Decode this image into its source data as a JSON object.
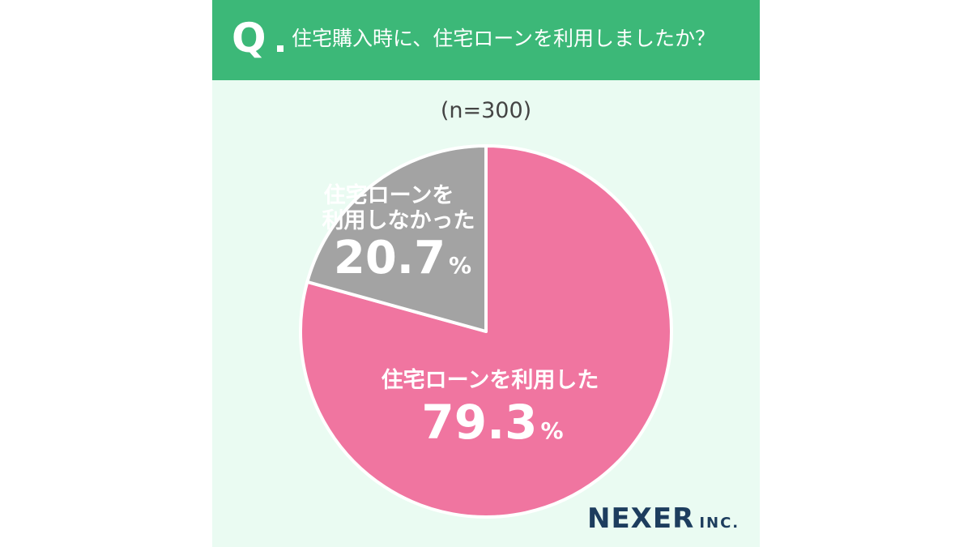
{
  "header": {
    "q_mark": "Q",
    "question": "住宅購入時に、住宅ローンを利用しましたか？"
  },
  "sample": "(n=300)",
  "colors": {
    "header_bg": "#3cb878",
    "panel_bg": "#eafbf2",
    "used": "#f075a0",
    "not_used": "#a3a3a3"
  },
  "chart_data": {
    "type": "pie",
    "title": "住宅購入時に、住宅ローンを利用しましたか？",
    "n": 300,
    "slices": [
      {
        "label": "住宅ローンを利用した",
        "value": 79.3,
        "value_text": "79.3",
        "unit": "%"
      },
      {
        "label_lines": [
          "住宅ローンを",
          "利用しなかった"
        ],
        "value": 20.7,
        "value_text": "20.7",
        "unit": "%"
      }
    ]
  },
  "logo": {
    "main": "NEXER",
    "suffix": "INC."
  }
}
